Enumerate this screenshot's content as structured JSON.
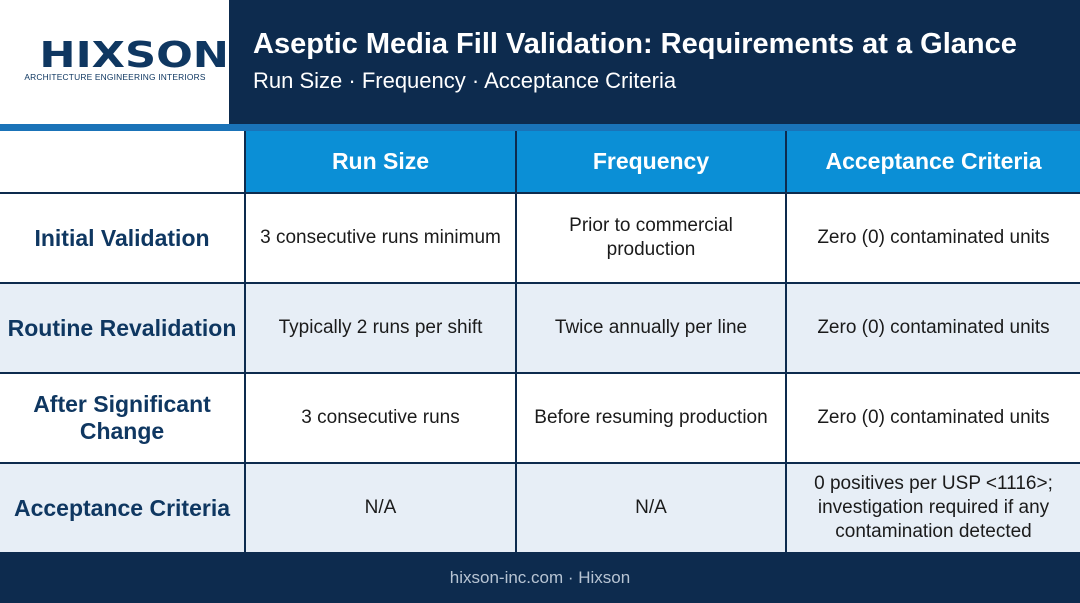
{
  "logo": {
    "name": "HIXSON",
    "tagline": "ARCHITECTURE ENGINEERING INTERIORS"
  },
  "header": {
    "title": "Aseptic Media Fill Validation: Requirements at a Glance",
    "subtitle": "Run Size · Frequency · Acceptance Criteria"
  },
  "table": {
    "columns": [
      "",
      "Run Size",
      "Frequency",
      "Acceptance Criteria"
    ],
    "rows": [
      {
        "label": "Initial Validation",
        "run_size": "3 consecutive runs minimum",
        "frequency": "Prior to commercial production",
        "acceptance": "Zero (0) contaminated units"
      },
      {
        "label": "Routine Revalidation",
        "run_size": "Typically 2 runs per shift",
        "frequency": "Twice annually per line",
        "acceptance": "Zero (0) contaminated units"
      },
      {
        "label": "After Significant Change",
        "run_size": "3 consecutive runs",
        "frequency": "Before resuming production",
        "acceptance": "Zero (0) contaminated units"
      },
      {
        "label": "Acceptance Criteria",
        "run_size": "N/A",
        "frequency": "N/A",
        "acceptance": "0 positives per USP <1116>; investigation required if any contamination detected"
      }
    ]
  },
  "footer": {
    "text": "hixson-inc.com · Hixson"
  },
  "colors": {
    "navy": "#0d2b4e",
    "header_blue": "#0b8fd6",
    "accent": "#1a73b8",
    "alt_row": "#e7eef6"
  }
}
